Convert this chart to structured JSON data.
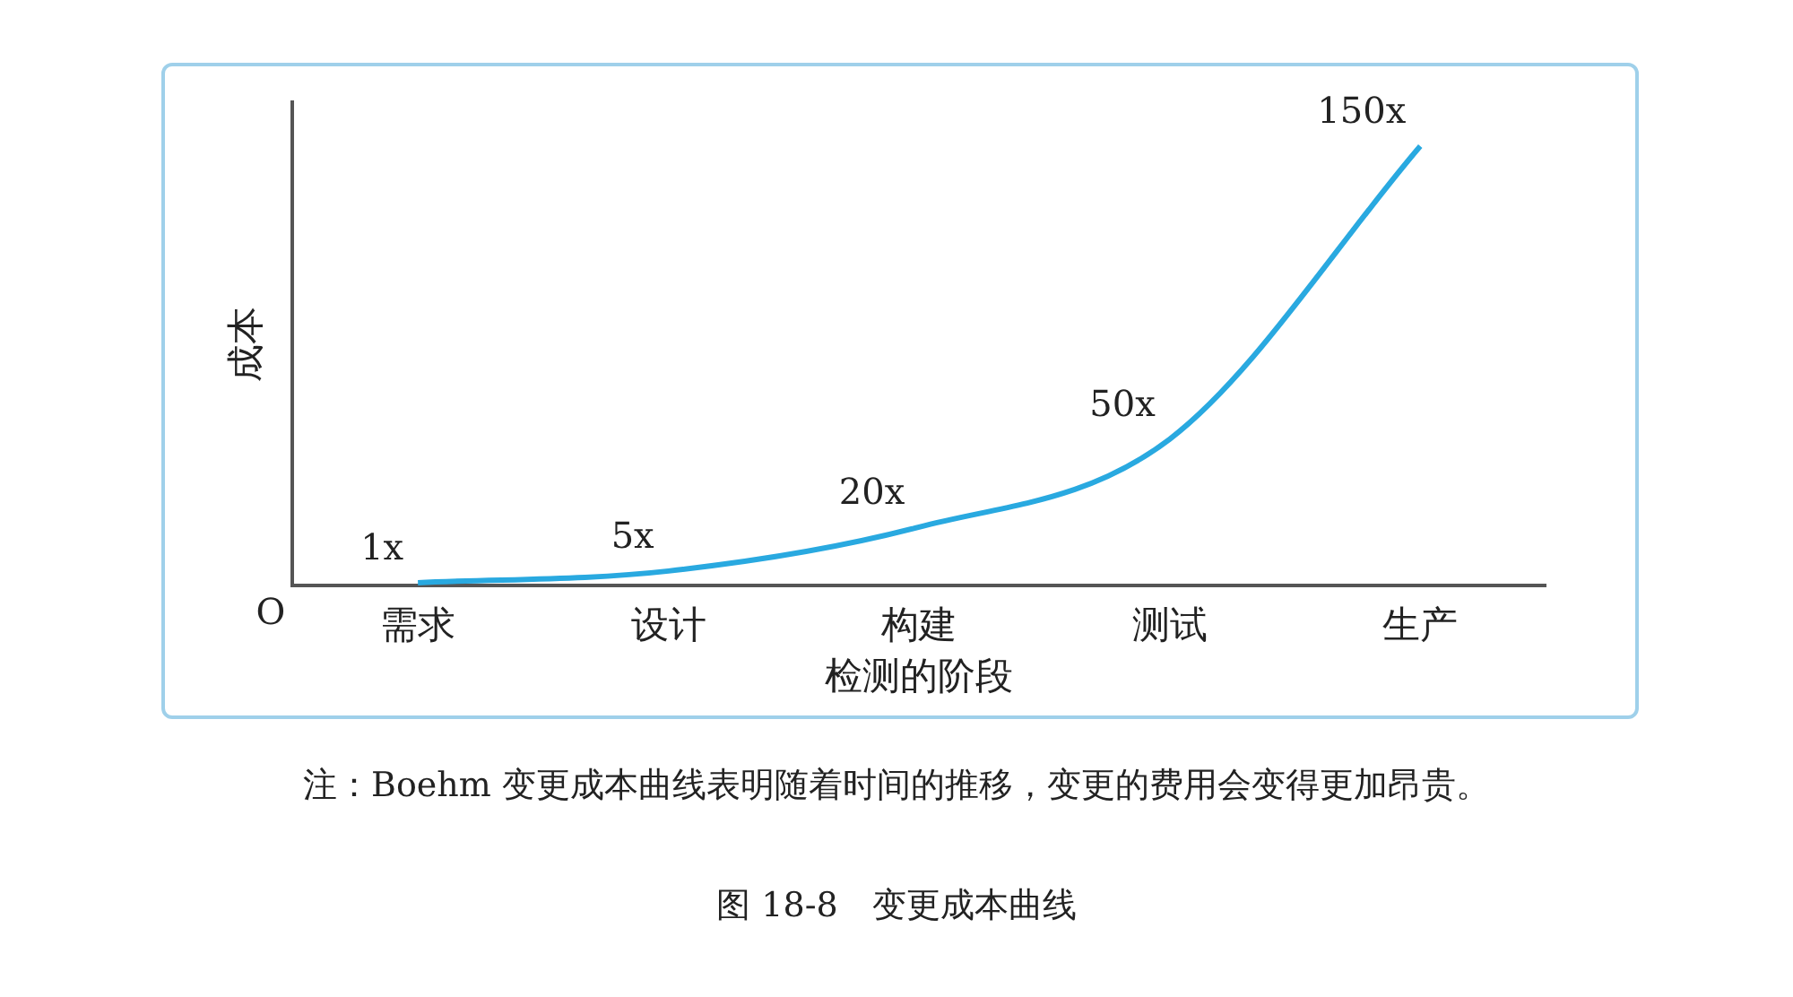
{
  "chart_data": {
    "type": "line",
    "title": "图 18-8　变更成本曲线",
    "xlabel": "检测的阶段",
    "ylabel": "成本",
    "categories": [
      "需求",
      "设计",
      "构建",
      "测试",
      "生产"
    ],
    "series": [
      {
        "color": "#29a9e0",
        "values": [
          1,
          5,
          20,
          50,
          150
        ],
        "value_labels": [
          "1x",
          "5x",
          "20x",
          "50x",
          "150x"
        ]
      }
    ],
    "ylim": [
      0,
      165
    ],
    "tick_labels": "x",
    "marker": "none",
    "grid": false,
    "legend": false,
    "annotations": [
      "O",
      "注：Boehm 变更成本曲线表明随着时间的推移，变更的费用会变得更加昂贵。"
    ]
  }
}
